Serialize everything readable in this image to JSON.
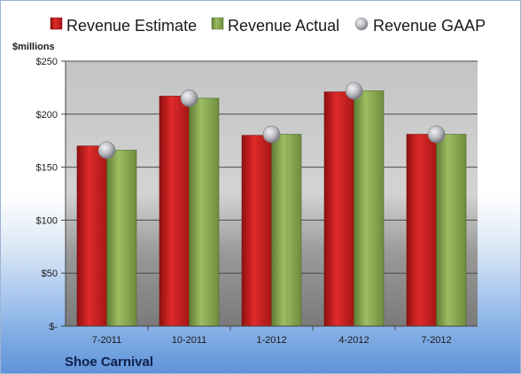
{
  "chart_data": {
    "type": "bar",
    "unit_label": "$millions",
    "company": "Shoe Carnival",
    "categories": [
      "7-2011",
      "10-2011",
      "1-2012",
      "4-2012",
      "7-2012"
    ],
    "series": [
      {
        "name": "Revenue Estimate",
        "kind": "bar",
        "color": "#cc1f1f",
        "values": [
          170,
          217,
          180,
          221,
          181
        ]
      },
      {
        "name": "Revenue Actual",
        "kind": "bar",
        "color": "#8aac52",
        "values": [
          166,
          215,
          181,
          222,
          181
        ]
      },
      {
        "name": "Revenue GAAP",
        "kind": "marker",
        "color": "#b8b8c0",
        "values": [
          166,
          215,
          181,
          222,
          181
        ]
      }
    ],
    "ylim": [
      0,
      250
    ],
    "y_ticks": [
      {
        "value": 0,
        "label": "$-"
      },
      {
        "value": 50,
        "label": "$50"
      },
      {
        "value": 100,
        "label": "$100"
      },
      {
        "value": 150,
        "label": "$150"
      },
      {
        "value": 200,
        "label": "$200"
      },
      {
        "value": 250,
        "label": "$250"
      }
    ],
    "grid": true,
    "legend_position": "top"
  }
}
